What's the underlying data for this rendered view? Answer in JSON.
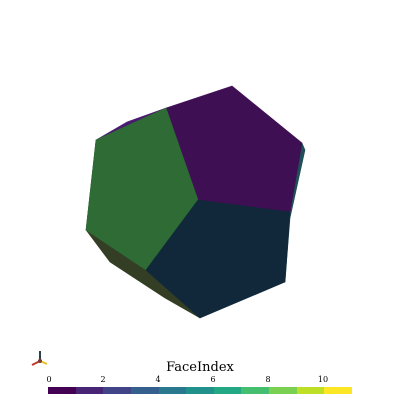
{
  "viewer": {
    "background": "#ffffff",
    "mesh_shape": "dodecahedron",
    "scalar_name": "FaceIndex",
    "visible_faces": [
      {
        "face": "upper-right",
        "color": "#3f0f54"
      },
      {
        "face": "left",
        "color": "#2e6b35"
      },
      {
        "face": "lower-right",
        "color": "#10283a"
      },
      {
        "face": "top-back",
        "color": "#4a1c6e"
      },
      {
        "face": "right-edge",
        "color": "#1f4f58"
      },
      {
        "face": "bottom-edge",
        "color": "#333e24"
      },
      {
        "face": "left-edge",
        "color": "#1d4a2a"
      }
    ]
  },
  "scalar_bar": {
    "title": "FaceIndex",
    "ticks": [
      "0",
      "2",
      "4",
      "6",
      "8",
      "10"
    ],
    "range": [
      0,
      11
    ],
    "colormap": "viridis",
    "colors": [
      "#440154",
      "#482475",
      "#414487",
      "#355f8d",
      "#2a788e",
      "#21918c",
      "#22a884",
      "#44bf70",
      "#7ad151",
      "#bddf26",
      "#fde725"
    ]
  },
  "axes_widget": {
    "icon": "orientation-axes-icon",
    "colors": {
      "x": "#c0392b",
      "y": "#e5c02a",
      "z": "#2c3e50"
    }
  }
}
